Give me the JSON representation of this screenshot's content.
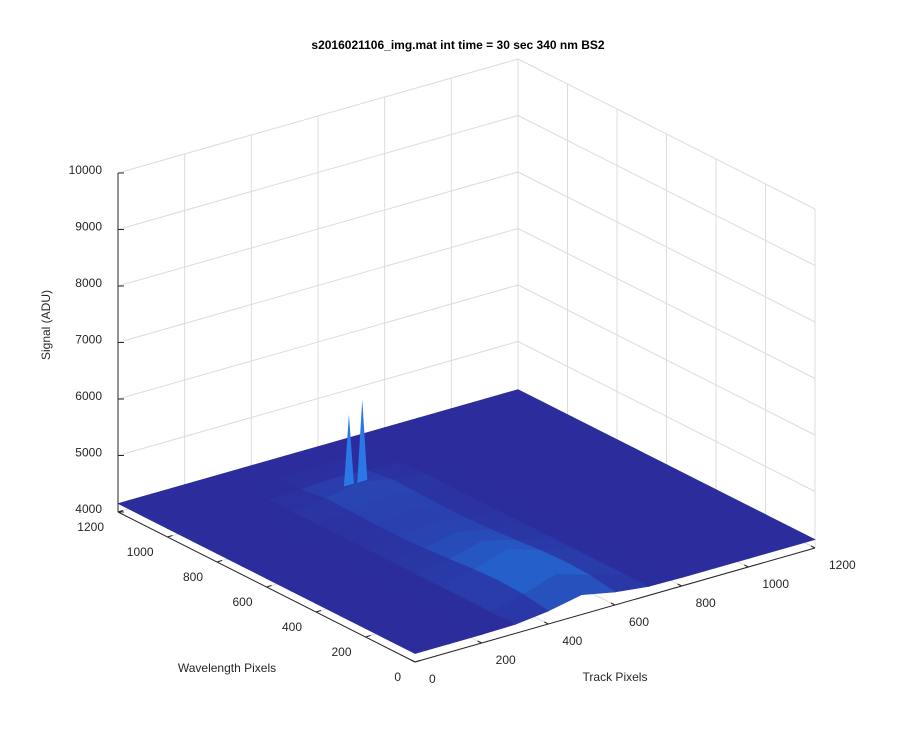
{
  "chart_data": {
    "type": "surface",
    "title": "s2016021106_img.mat int time = 30 sec  340 nm BS2",
    "xlabel": "Track Pixels",
    "ylabel": "Wavelength Pixels",
    "zlabel": "Signal (ADU)",
    "x": [
      0,
      100,
      200,
      300,
      400,
      500,
      600,
      700,
      800,
      900,
      1000,
      1100,
      1200
    ],
    "y": [
      0,
      100,
      200,
      300,
      400,
      500,
      600,
      700,
      800,
      900,
      1000,
      1100,
      1200
    ],
    "z": [
      [
        4150,
        4150,
        4150,
        4160,
        4230,
        4350,
        4230,
        4160,
        4150,
        4150,
        4150,
        4150,
        4150
      ],
      [
        4150,
        4150,
        4150,
        4160,
        4300,
        4500,
        4300,
        4160,
        4150,
        4150,
        4150,
        4150,
        4150
      ],
      [
        4150,
        4150,
        4150,
        4160,
        4320,
        4550,
        4320,
        4160,
        4150,
        4150,
        4150,
        4150,
        4150
      ],
      [
        4150,
        4150,
        4150,
        4160,
        4300,
        4500,
        4300,
        4160,
        4150,
        4150,
        4150,
        4150,
        4150
      ],
      [
        4150,
        4150,
        4150,
        4160,
        4260,
        4420,
        4260,
        4160,
        4150,
        4150,
        4150,
        4150,
        4150
      ],
      [
        4150,
        4150,
        4150,
        4160,
        4230,
        4350,
        4230,
        4160,
        4150,
        4150,
        4150,
        4150,
        4150
      ],
      [
        4150,
        4150,
        4150,
        4160,
        4210,
        4300,
        4210,
        4160,
        4150,
        4150,
        4150,
        4150,
        4150
      ],
      [
        4150,
        4150,
        4150,
        4160,
        4210,
        4300,
        4210,
        4160,
        4150,
        4150,
        4150,
        4150,
        4150
      ],
      [
        4150,
        4150,
        4150,
        4160,
        4220,
        4320,
        4220,
        4160,
        4150,
        4150,
        4150,
        4150,
        4150
      ],
      [
        4150,
        4150,
        4150,
        4160,
        4230,
        4350,
        4230,
        4160,
        4150,
        4150,
        4150,
        4150,
        4150
      ],
      [
        4150,
        4150,
        4150,
        4150,
        4170,
        4200,
        4170,
        4150,
        4150,
        4150,
        4150,
        4150,
        4150
      ],
      [
        4150,
        4150,
        4150,
        4150,
        4150,
        4150,
        4150,
        4150,
        4150,
        4150,
        4150,
        4150,
        4150
      ],
      [
        4150,
        4150,
        4150,
        4150,
        4150,
        4150,
        4150,
        4150,
        4150,
        4150,
        4150,
        4150,
        4150
      ]
    ],
    "peaks": {
      "x": [
        470,
        510
      ],
      "y": [
        900,
        900
      ],
      "z": [
        5600,
        5800
      ]
    },
    "xlim": [
      0,
      1200
    ],
    "ylim": [
      0,
      1200
    ],
    "zlim": [
      4000,
      10000
    ],
    "xticks": [
      0,
      200,
      400,
      600,
      800,
      1000,
      1200
    ],
    "yticks": [
      0,
      200,
      400,
      600,
      800,
      1000,
      1200
    ],
    "zticks": [
      4000,
      5000,
      6000,
      7000,
      8000,
      9000,
      10000
    ],
    "grid": true
  }
}
